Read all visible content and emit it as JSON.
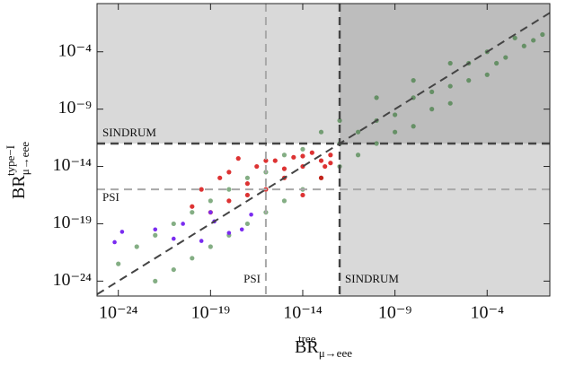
{
  "chart_data": {
    "type": "scatter",
    "xscale": "log",
    "yscale": "log",
    "xlim": [
      7e-26,
      0.25
    ],
    "ylim": [
      5e-26,
      1.6
    ],
    "xticks": [
      {
        "value": 1e-24,
        "label": "10⁻²⁴"
      },
      {
        "value": 1e-19,
        "label": "10⁻¹⁹"
      },
      {
        "value": 1e-14,
        "label": "10⁻¹⁴"
      },
      {
        "value": 1e-09,
        "label": "10⁻⁹"
      },
      {
        "value": 0.0001,
        "label": "10⁻⁴"
      }
    ],
    "yticks": [
      {
        "value": 1e-24,
        "label": "10⁻²⁴"
      },
      {
        "value": 1e-19,
        "label": "10⁻¹⁹"
      },
      {
        "value": 1e-14,
        "label": "10⁻¹⁴"
      },
      {
        "value": 1e-09,
        "label": "10⁻⁹"
      },
      {
        "value": 0.0001,
        "label": "10⁻⁴"
      }
    ],
    "x_label": {
      "base": "BR",
      "sup": "tree",
      "sub": "μ→eee"
    },
    "y_label": {
      "base": "BR",
      "sup": "type−I",
      "sub": "μ→eee"
    },
    "limits": [
      {
        "name": "SINDRUM",
        "value": 1e-12,
        "color": "#444444"
      },
      {
        "name": "PSI",
        "value": 1e-16,
        "color": "#a8a8a8"
      }
    ],
    "series": [
      {
        "color": "#1f6b1f",
        "x": [
          0.1,
          0.032,
          0.01,
          0.0032,
          0.001,
          0.00032,
          0.0001,
          0.0001,
          1e-05,
          1e-05,
          1e-06,
          1e-06,
          1e-07,
          1e-07,
          1e-08,
          1e-08,
          1e-09,
          1e-09,
          1e-10,
          1e-10,
          1e-11,
          1e-11,
          1e-12,
          1e-12,
          1e-13,
          1e-13,
          1e-14,
          1e-14,
          1e-15,
          1e-15,
          1e-16,
          1e-16,
          1e-17,
          1e-17,
          1e-18,
          1e-18,
          1e-19,
          1e-19,
          1e-20,
          1e-20,
          1e-21,
          1e-21,
          1e-22,
          1e-22,
          1e-23,
          1e-24,
          1e-08,
          1e-10,
          1e-06,
          1e-12
        ],
        "values": [
          0.0032,
          0.001,
          0.00032,
          0.0016,
          3.2e-05,
          1e-05,
          0.0001,
          1e-06,
          3.2e-07,
          1e-05,
          1e-07,
          3.2e-09,
          3.2e-08,
          1e-09,
          1e-08,
          3.2e-11,
          3.2e-10,
          1e-11,
          1e-10,
          1e-12,
          1e-11,
          1e-13,
          1e-12,
          1e-14,
          1e-11,
          1e-15,
          3.2e-13,
          1e-16,
          1e-13,
          1e-17,
          3.2e-15,
          1e-18,
          1e-15,
          1e-19,
          1e-16,
          1e-20,
          1e-17,
          1e-21,
          1e-18,
          1e-22,
          1e-19,
          1e-23,
          1e-20,
          1e-24,
          1e-21,
          3.2e-23,
          3.2e-07,
          1e-08,
          1e-05,
          1e-10
        ]
      },
      {
        "color": "#d40000",
        "x": [
          3.2e-13,
          1e-13,
          3.2e-14,
          1e-14,
          3.2e-15,
          1e-15,
          3.2e-16,
          1e-16,
          3.2e-17,
          1e-17,
          3.2e-18,
          1e-18,
          3.2e-19,
          1e-19,
          3.2e-20,
          1e-20,
          1e-13,
          1e-14,
          1.6e-13,
          1e-16,
          1e-15,
          1e-17,
          1e-18,
          3.2e-13,
          1e-14
        ],
        "values": [
          1e-13,
          3.2e-14,
          1.6e-13,
          1e-14,
          6.3e-14,
          1e-15,
          3.2e-14,
          1e-16,
          1e-14,
          3.2e-17,
          5e-14,
          1e-17,
          1e-15,
          1e-18,
          1e-16,
          3.2e-18,
          1e-15,
          3.2e-17,
          1e-14,
          3.2e-14,
          6.3e-15,
          3.2e-16,
          3.2e-15,
          2e-14,
          8e-14
        ]
      },
      {
        "color": "#7a2cf0",
        "x": [
          6.3e-25,
          1.6e-24,
          1e-22,
          1e-21,
          3.2e-21,
          3.2e-20,
          1.6e-19,
          1e-18,
          5e-18,
          1.6e-17,
          1e-19
        ],
        "values": [
          2.5e-21,
          2e-20,
          3.2e-20,
          5e-21,
          1e-19,
          3.2e-21,
          1.6e-19,
          1.6e-20,
          3.2e-20,
          6.3e-19,
          1e-18
        ]
      }
    ]
  }
}
